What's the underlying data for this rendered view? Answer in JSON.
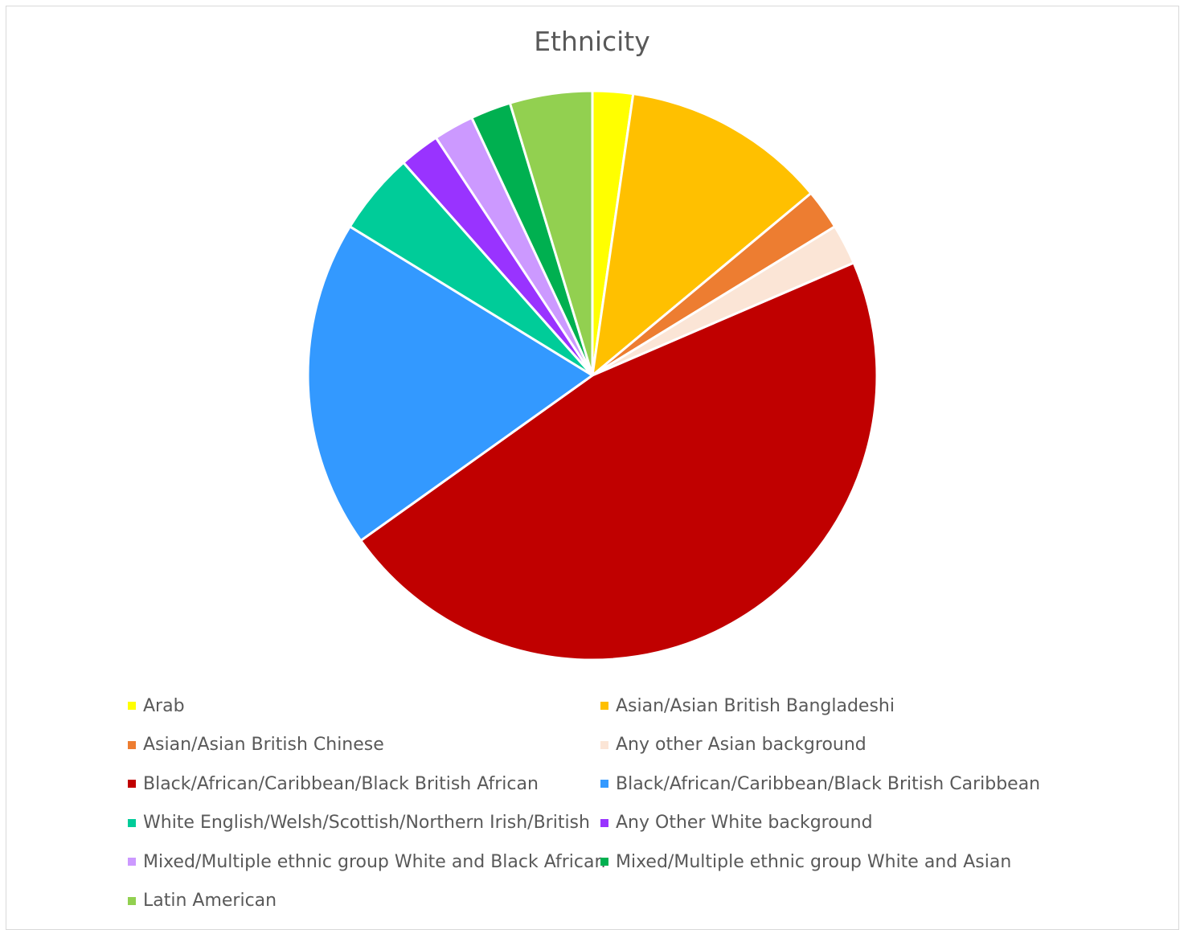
{
  "chart_data": {
    "type": "pie",
    "title": "Ethnicity",
    "legend_position": "bottom",
    "categories": [
      "Arab",
      "Asian/Asian British Bangladeshi",
      "Asian/Asian British Chinese",
      "Any other Asian background",
      "Black/African/Caribbean/Black British African",
      "Black/African/Caribbean/Black British Caribbean",
      "White English/Welsh/Scottish/Northern Irish/British",
      "Any Other White background",
      "Mixed/Multiple ethnic group White and Black African",
      "Mixed/Multiple ethnic group White and Asian",
      "Latin American"
    ],
    "values": [
      2.4,
      12.2,
      2.4,
      2.4,
      48.8,
      19.5,
      4.9,
      2.4,
      2.4,
      2.4,
      4.9
    ],
    "colors": [
      "#FFFF00",
      "#FFC000",
      "#ED7D31",
      "#FBE5D6",
      "#C00000",
      "#3399FF",
      "#00CC99",
      "#9933FF",
      "#CC99FF",
      "#00B050",
      "#92D050"
    ]
  }
}
